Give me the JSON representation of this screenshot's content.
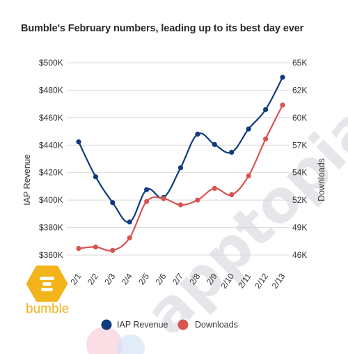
{
  "title": "Bumble's February numbers, leading up to its best day ever",
  "watermark_text": "apptopia",
  "brand": {
    "word": "bumble",
    "color": "#f2b31b"
  },
  "chart_data": {
    "type": "line",
    "title": "Bumble's February numbers, leading up to its best day ever",
    "categories": [
      "2/1",
      "2/2",
      "2/3",
      "2/4",
      "2/5",
      "2/6",
      "2/7",
      "2/8",
      "2/9",
      "2/10",
      "2/11",
      "2/12",
      "2/13"
    ],
    "y_left": {
      "label": "IAP Revenue",
      "ticks": [
        "$360K",
        "$380K",
        "$400K",
        "$420K",
        "$440K",
        "$460K",
        "$480K",
        "$500K"
      ],
      "range": [
        350000,
        500000
      ]
    },
    "y_right": {
      "label": "Downloads",
      "ticks": [
        "46K",
        "49K",
        "52K",
        "54K",
        "57K",
        "60K",
        "62K",
        "65K"
      ],
      "range": [
        45000,
        65000
      ]
    },
    "grid": true,
    "legend": "bottom",
    "series": [
      {
        "name": "IAP Revenue",
        "axis": "left",
        "color": "#0f3a7e",
        "values": [
          443000,
          416000,
          396000,
          381000,
          406000,
          400000,
          423000,
          449000,
          441000,
          435000,
          453000,
          468000,
          493000
        ]
      },
      {
        "name": "Downloads",
        "axis": "right",
        "color": "#d9534f",
        "values": [
          46400,
          46550,
          46200,
          47500,
          51250,
          51550,
          50900,
          51400,
          52600,
          51950,
          53900,
          57700,
          61200
        ]
      }
    ]
  }
}
